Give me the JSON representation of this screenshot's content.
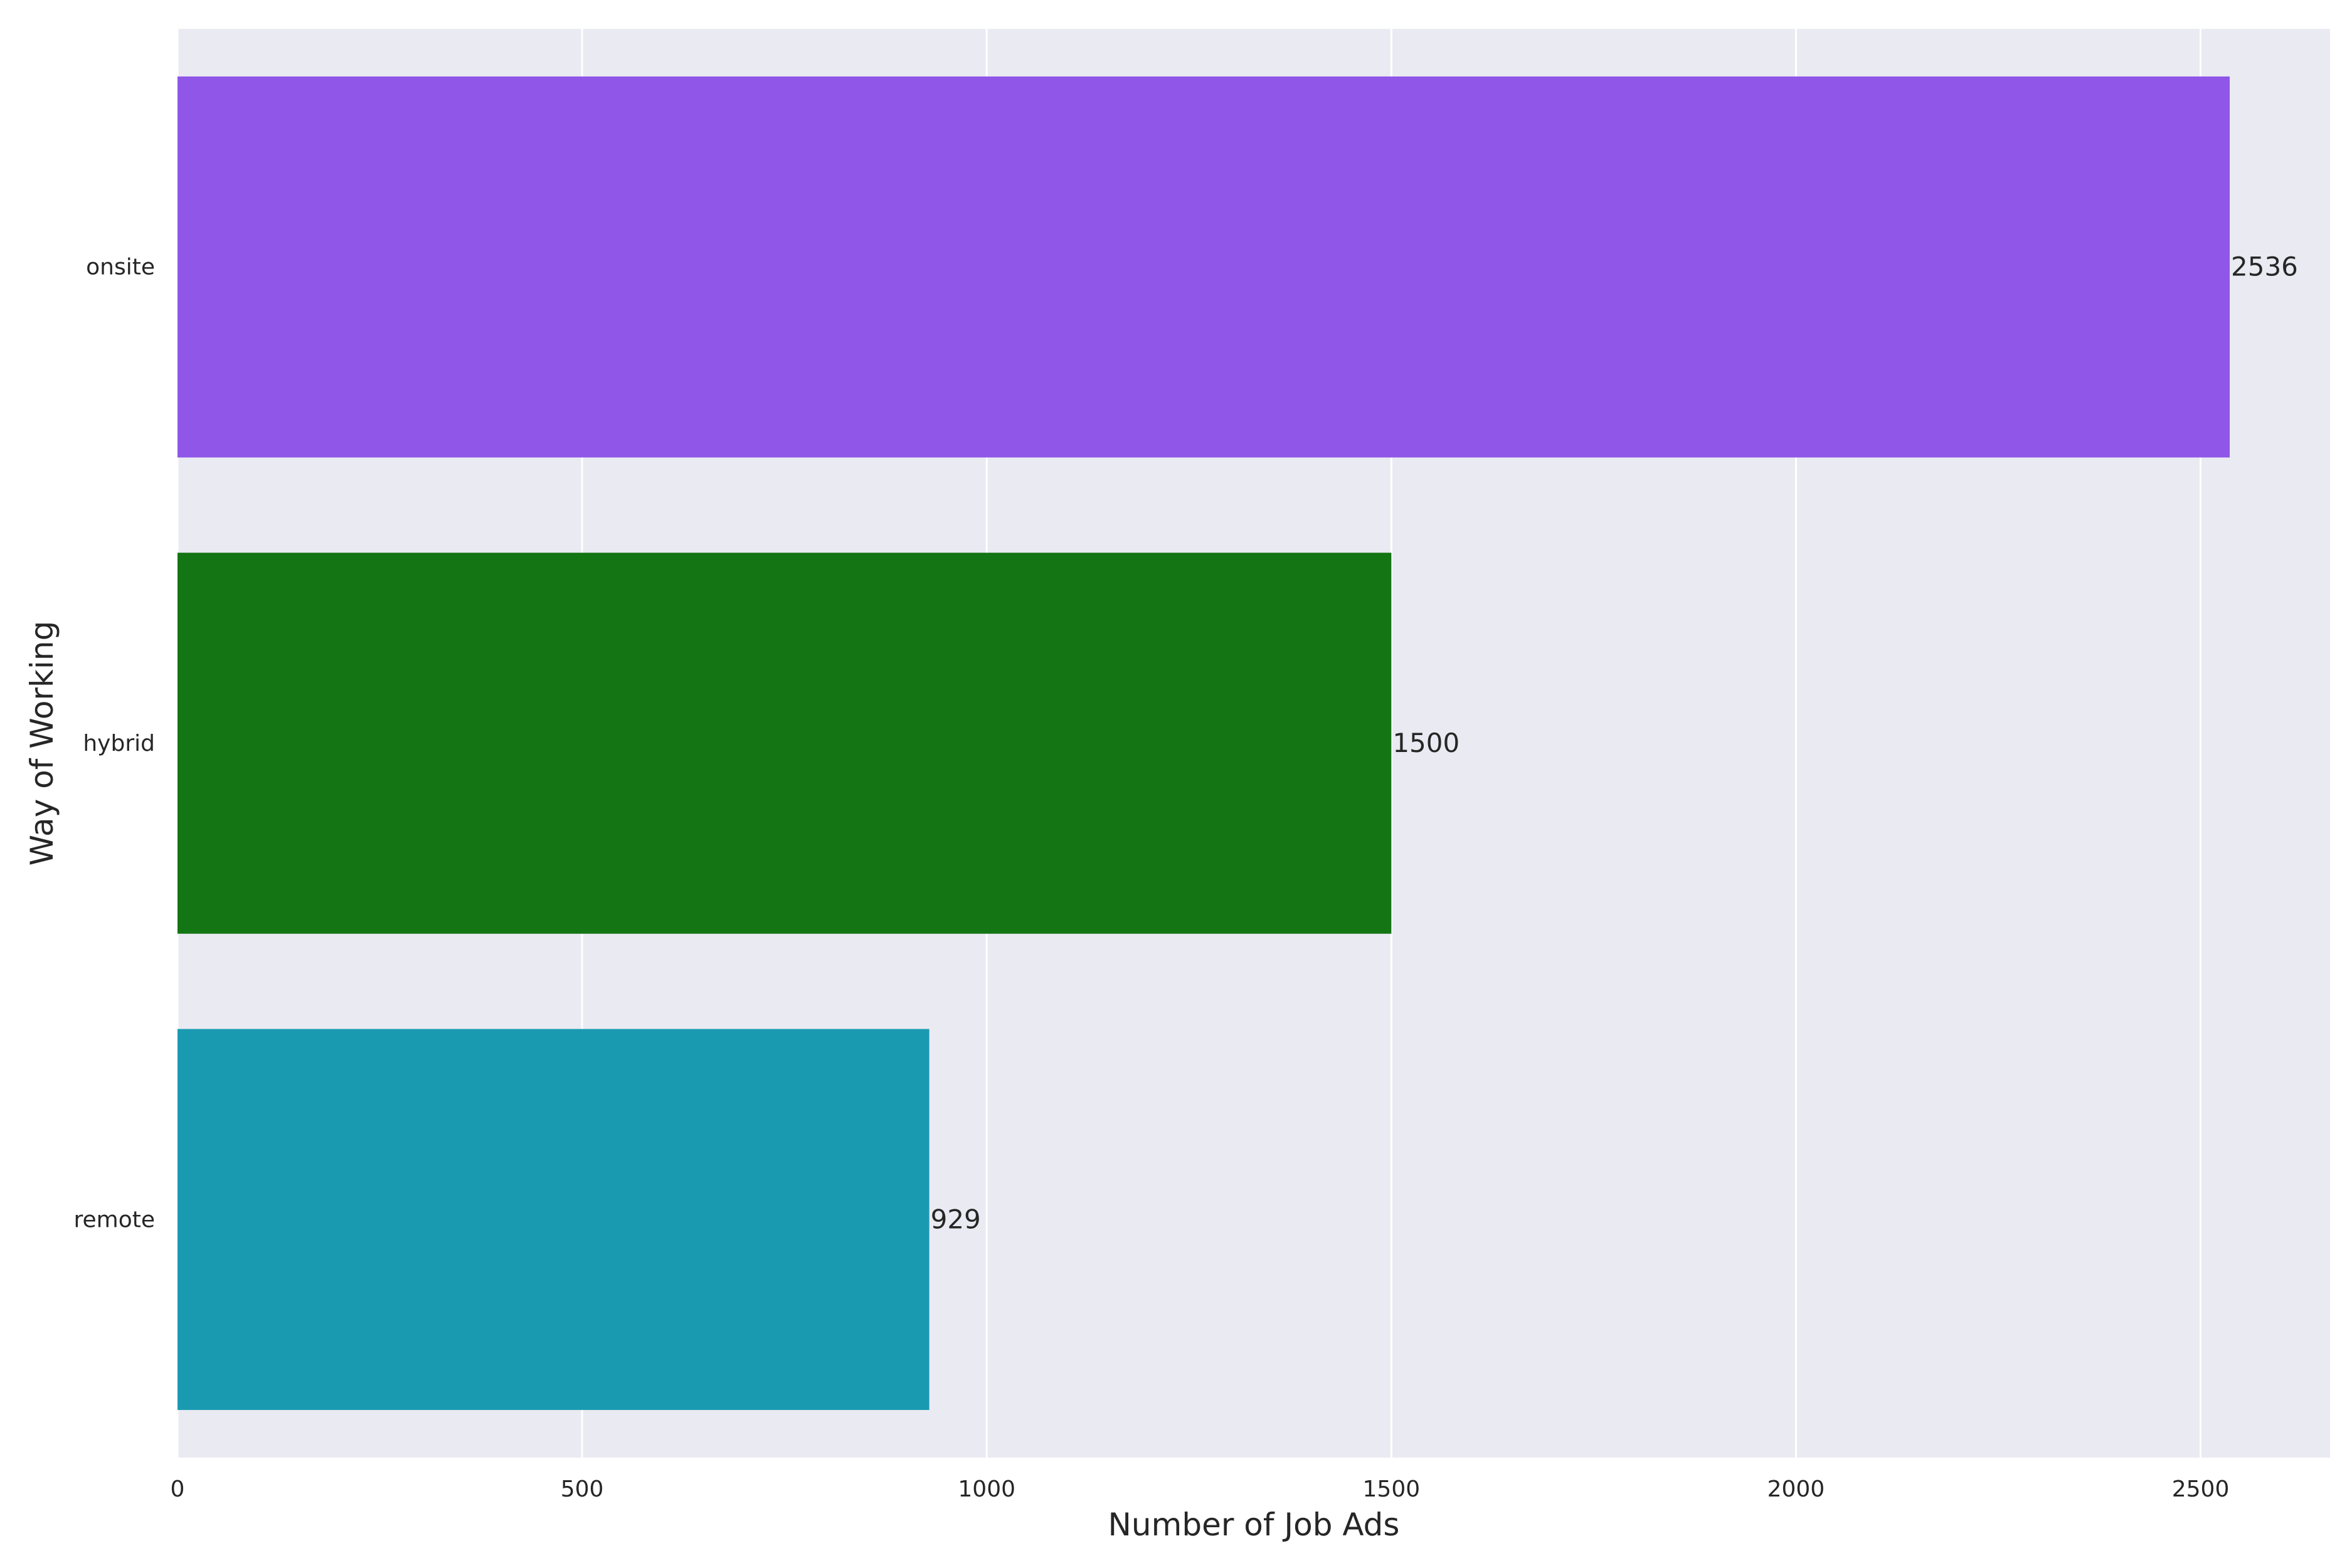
{
  "chart_data": {
    "type": "bar",
    "orientation": "horizontal",
    "title": "",
    "xlabel": "Number of Job Ads",
    "ylabel": "Way of Working",
    "categories": [
      "onsite",
      "hybrid",
      "remote"
    ],
    "values": [
      2536,
      1500,
      929
    ],
    "value_labels": [
      "2536",
      "1500",
      "929"
    ],
    "colors": [
      "#8f56e7",
      "#137513",
      "#1a9ab1"
    ],
    "xlim": [
      0,
      2660
    ],
    "xticks": [
      0,
      500,
      1000,
      1500,
      2000,
      2500
    ],
    "xtick_labels": [
      "0",
      "500",
      "1000",
      "1500",
      "2000",
      "2500"
    ],
    "grid": true,
    "background_color": "#eaeaf2",
    "grid_color": "#ffffff"
  }
}
